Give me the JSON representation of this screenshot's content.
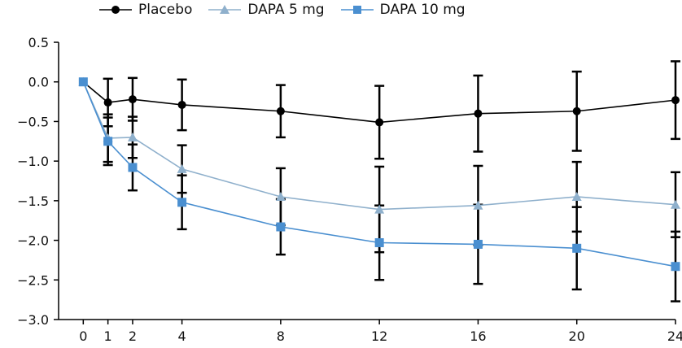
{
  "chart_data": {
    "type": "line",
    "title": "",
    "xlabel": "",
    "ylabel": "",
    "x": [
      0,
      1,
      2,
      4,
      8,
      12,
      16,
      20,
      24
    ],
    "xlim": [
      -1,
      24
    ],
    "ylim": [
      -3.0,
      0.5
    ],
    "x_ticks": [
      0,
      1,
      2,
      4,
      8,
      12,
      16,
      20,
      24
    ],
    "y_ticks": [
      0.5,
      0.0,
      -0.5,
      -1.0,
      -1.5,
      -2.0,
      -2.5,
      -3.0
    ],
    "y_tick_labels": [
      "0.5",
      "0.0",
      "−0.5",
      "−1.0",
      "−1.5",
      "−2.0",
      "−2.5",
      "−3.0"
    ],
    "grid": false,
    "legend_position": "top",
    "series": [
      {
        "name": "Placebo",
        "color": "#000000",
        "marker": "circle",
        "values": [
          0.0,
          -0.26,
          -0.22,
          -0.29,
          -0.37,
          -0.51,
          -0.4,
          -0.37,
          -0.23
        ],
        "error": [
          0,
          0.3,
          0.27,
          0.32,
          0.33,
          0.46,
          0.48,
          0.5,
          0.49
        ]
      },
      {
        "name": "DAPA 5 mg",
        "color": "#8fb0cc",
        "marker": "triangle",
        "values": [
          0.0,
          -0.71,
          -0.7,
          -1.1,
          -1.45,
          -1.61,
          -1.56,
          -1.45,
          -1.55
        ],
        "error": [
          0,
          0.3,
          0.26,
          0.3,
          0.36,
          0.54,
          0.5,
          0.44,
          0.41
        ]
      },
      {
        "name": "DAPA 10 mg",
        "color": "#4a8fd0",
        "marker": "square",
        "values": [
          0.0,
          -0.75,
          -1.08,
          -1.52,
          -1.83,
          -2.03,
          -2.05,
          -2.1,
          -2.33
        ],
        "error": [
          0,
          0.3,
          0.29,
          0.34,
          0.35,
          0.47,
          0.5,
          0.52,
          0.44
        ]
      }
    ]
  }
}
